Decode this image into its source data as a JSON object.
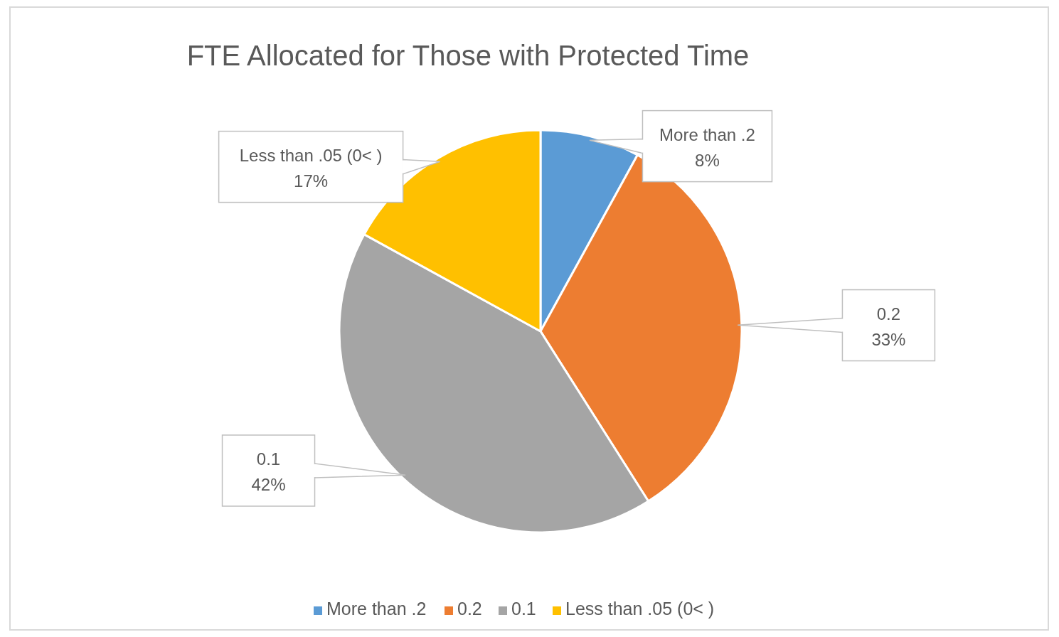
{
  "chart_data": {
    "type": "pie",
    "title": "FTE Allocated for Those with Protected Time",
    "categories": [
      "More than .2",
      "0.2",
      "0.1",
      "Less than .05 (0< )"
    ],
    "values": [
      8,
      33,
      42,
      17
    ],
    "colors": [
      "#5b9bd5",
      "#ed7d31",
      "#a5a5a5",
      "#ffc000"
    ],
    "value_labels": [
      "8%",
      "33%",
      "42%",
      "17%"
    ],
    "legend": "bottom"
  }
}
